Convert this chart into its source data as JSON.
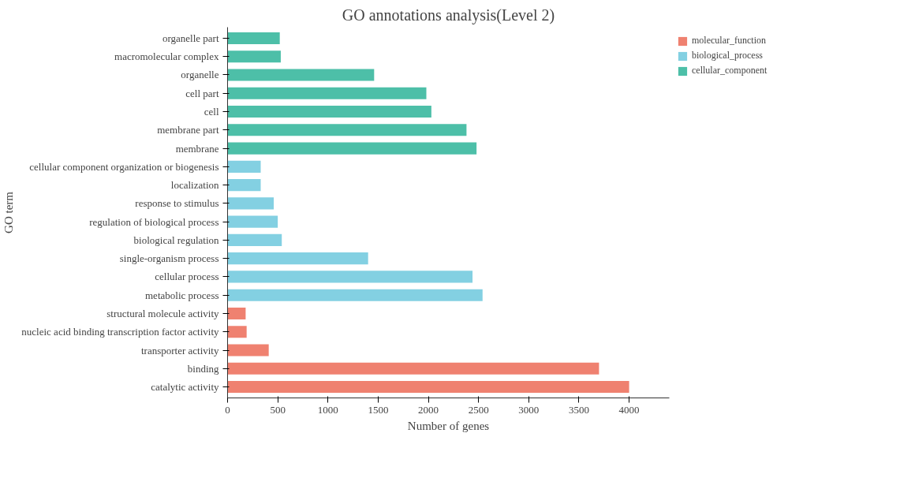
{
  "chart_data": {
    "type": "bar",
    "orientation": "horizontal",
    "title": "GO annotations analysis(Level 2)",
    "xlabel": "Number of genes",
    "ylabel": "GO term",
    "categories": [
      "organelle part",
      "macromolecular complex",
      "organelle",
      "cell part",
      "cell",
      "membrane part",
      "membrane",
      "cellular component organization or biogenesis",
      "localization",
      "response to stimulus",
      "regulation of biological process",
      "biological regulation",
      "single-organism process",
      "cellular process",
      "metabolic process",
      "structural molecule activity",
      "nucleic acid binding transcription factor activity",
      "transporter activity",
      "binding",
      "catalytic activity"
    ],
    "series": [
      {
        "name": "molecular_function",
        "color": "#ef8170",
        "values": [
          null,
          null,
          null,
          null,
          null,
          null,
          null,
          null,
          null,
          null,
          null,
          null,
          null,
          null,
          null,
          180,
          190,
          410,
          3700,
          4000
        ]
      },
      {
        "name": "biological_process",
        "color": "#83d0e2",
        "values": [
          null,
          null,
          null,
          null,
          null,
          null,
          null,
          330,
          330,
          460,
          500,
          540,
          1400,
          2440,
          2540,
          null,
          null,
          null,
          null,
          null
        ]
      },
      {
        "name": "cellular_component",
        "color": "#4dbfa8",
        "values": [
          520,
          530,
          1460,
          1980,
          2030,
          2380,
          2480,
          null,
          null,
          null,
          null,
          null,
          null,
          null,
          null,
          null,
          null,
          null,
          null,
          null
        ]
      }
    ],
    "xlim": [
      0,
      4400
    ],
    "xticks": [
      0,
      500,
      1000,
      1500,
      2000,
      2500,
      3000,
      3500,
      4000
    ],
    "grid": false,
    "legend": "top right"
  }
}
